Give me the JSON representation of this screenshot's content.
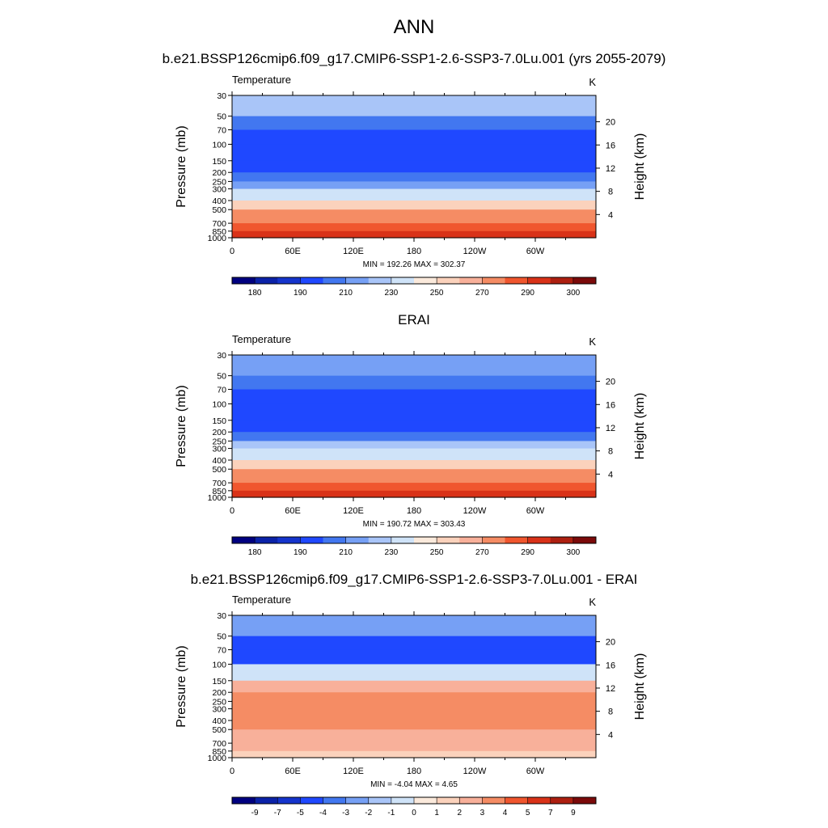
{
  "figure": {
    "season": "ANN",
    "titles": [
      "b.e21.BSSP126cmip6.f09_g17.CMIP6-SSP1-2.6-SSP3-7.0Lu.001 (yrs 2055-2079)",
      "ERAI",
      "b.e21.BSSP126cmip6.f09_g17.CMIP6-SSP1-2.6-SSP3-7.0Lu.001 - ERAI"
    ]
  },
  "colors": {
    "abs": [
      "#000080",
      "#0b22a8",
      "#1534cc",
      "#1f48ff",
      "#4277f0",
      "#76a0f5",
      "#a9c5f8",
      "#cfe3f8",
      "#fbeadc",
      "#fbd2bc",
      "#f8b09a",
      "#f58c64",
      "#f0562e",
      "#d93218",
      "#ad1f10",
      "#7b0a0a"
    ],
    "diff": [
      "#000080",
      "#0b22a8",
      "#1534cc",
      "#1f48ff",
      "#4277f0",
      "#76a0f5",
      "#a9c5f8",
      "#cfe3f8",
      "#fbeadc",
      "#fbd2bc",
      "#f8b09a",
      "#f58c64",
      "#f0562e",
      "#d93218",
      "#ad1f10",
      "#7b0a0a"
    ]
  },
  "chart_data": [
    {
      "type": "heatmap",
      "panel": "model",
      "left_label": "Temperature",
      "right_label": "K",
      "ylabel": "Pressure (mb)",
      "ylabel_right": "Height (km)",
      "x_ticks": [
        "0",
        "60E",
        "120E",
        "180",
        "120W",
        "60W"
      ],
      "x_tick_lon": [
        0,
        60,
        120,
        180,
        240,
        300
      ],
      "xlim": [
        0,
        360
      ],
      "y_ticks": [
        "30",
        "50",
        "70",
        "100",
        "150",
        "200",
        "250",
        "300",
        "400",
        "500",
        "700",
        "850",
        "1000"
      ],
      "y_tick_p": [
        30,
        50,
        70,
        100,
        150,
        200,
        250,
        300,
        400,
        500,
        700,
        850,
        1000
      ],
      "ylim_mb": [
        30,
        1000
      ],
      "height_ticks": [
        "20",
        "16",
        "12",
        "8",
        "4"
      ],
      "height_km": [
        20,
        16,
        12,
        8,
        4
      ],
      "stats": "MIN = 192.26  MAX = 302.37",
      "min": 192.26,
      "max": 302.37,
      "colorbar_labels": [
        "180",
        "190",
        "210",
        "230",
        "250",
        "270",
        "290",
        "300"
      ],
      "levels": [
        30,
        50,
        70,
        100,
        150,
        200,
        250,
        300,
        400,
        500,
        700,
        850,
        1000
      ],
      "band_color_index": [
        6,
        4,
        3,
        3,
        3,
        4,
        5,
        7,
        9,
        11,
        12,
        13
      ]
    },
    {
      "type": "heatmap",
      "panel": "obs",
      "left_label": "Temperature",
      "right_label": "K",
      "ylabel": "Pressure (mb)",
      "ylabel_right": "Height (km)",
      "x_ticks": [
        "0",
        "60E",
        "120E",
        "180",
        "120W",
        "60W"
      ],
      "x_tick_lon": [
        0,
        60,
        120,
        180,
        240,
        300
      ],
      "xlim": [
        0,
        360
      ],
      "y_ticks": [
        "30",
        "50",
        "70",
        "100",
        "150",
        "200",
        "250",
        "300",
        "400",
        "500",
        "700",
        "850",
        "1000"
      ],
      "y_tick_p": [
        30,
        50,
        70,
        100,
        150,
        200,
        250,
        300,
        400,
        500,
        700,
        850,
        1000
      ],
      "ylim_mb": [
        30,
        1000
      ],
      "height_ticks": [
        "20",
        "16",
        "12",
        "8",
        "4"
      ],
      "height_km": [
        20,
        16,
        12,
        8,
        4
      ],
      "stats": "MIN = 190.72  MAX = 303.43",
      "min": 190.72,
      "max": 303.43,
      "colorbar_labels": [
        "180",
        "190",
        "210",
        "230",
        "250",
        "270",
        "290",
        "300"
      ],
      "levels": [
        30,
        50,
        70,
        100,
        150,
        200,
        250,
        300,
        400,
        500,
        700,
        850,
        1000
      ],
      "band_color_index": [
        5,
        4,
        3,
        3,
        3,
        4,
        6,
        7,
        9,
        11,
        12,
        13
      ]
    },
    {
      "type": "heatmap",
      "panel": "diff",
      "left_label": "Temperature",
      "right_label": "K",
      "ylabel": "Pressure (mb)",
      "ylabel_right": "Height (km)",
      "x_ticks": [
        "0",
        "60E",
        "120E",
        "180",
        "120W",
        "60W"
      ],
      "x_tick_lon": [
        0,
        60,
        120,
        180,
        240,
        300
      ],
      "xlim": [
        0,
        360
      ],
      "y_ticks": [
        "30",
        "50",
        "70",
        "100",
        "150",
        "200",
        "250",
        "300",
        "400",
        "500",
        "700",
        "850",
        "1000"
      ],
      "y_tick_p": [
        30,
        50,
        70,
        100,
        150,
        200,
        250,
        300,
        400,
        500,
        700,
        850,
        1000
      ],
      "ylim_mb": [
        30,
        1000
      ],
      "height_ticks": [
        "20",
        "16",
        "12",
        "8",
        "4"
      ],
      "height_km": [
        20,
        16,
        12,
        8,
        4
      ],
      "stats": "MIN =  -4.04  MAX =   4.65",
      "min": -4.04,
      "max": 4.65,
      "colorbar_labels": [
        "-9",
        "-7",
        "-5",
        "-4",
        "-3",
        "-2",
        "-1",
        "0",
        "1",
        "2",
        "3",
        "4",
        "5",
        "7",
        "9"
      ],
      "levels": [
        30,
        50,
        70,
        100,
        150,
        200,
        250,
        300,
        400,
        500,
        700,
        850,
        1000
      ],
      "band_color_index": [
        5,
        3,
        3,
        7,
        10,
        11,
        11,
        11,
        11,
        10,
        10,
        9
      ]
    }
  ]
}
